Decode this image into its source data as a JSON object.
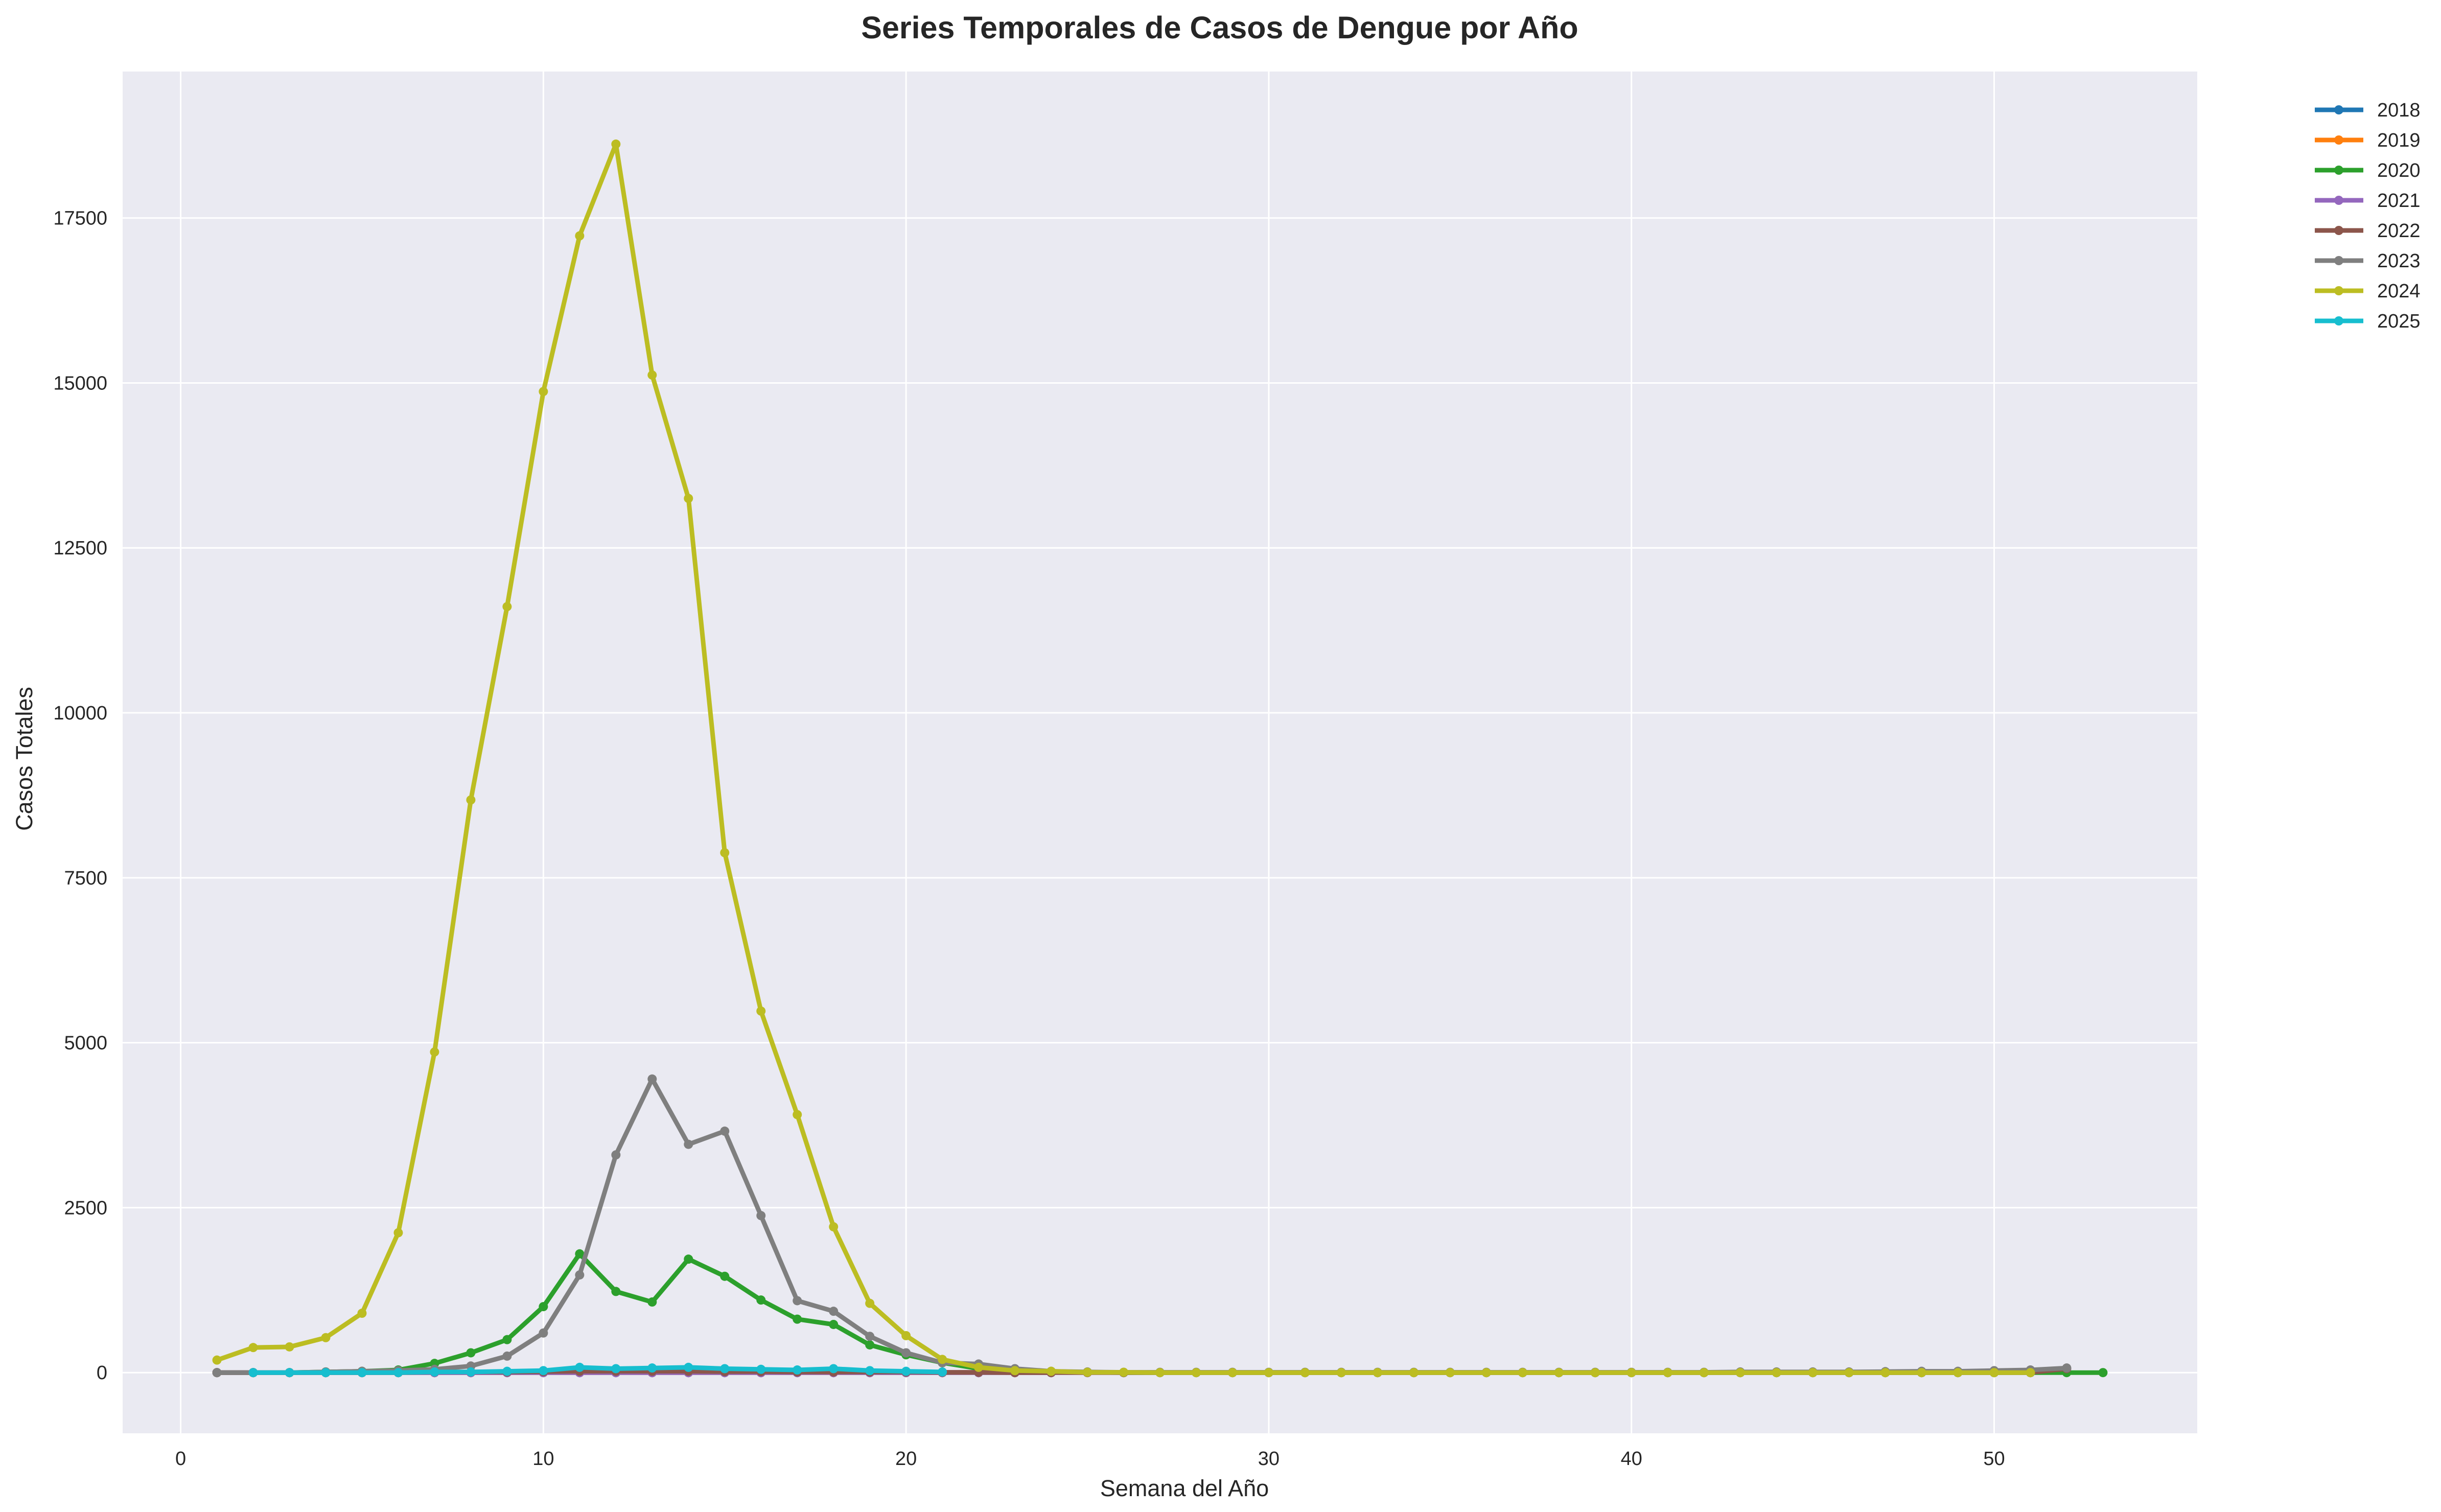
{
  "chart_data": {
    "type": "line",
    "title": "Series Temporales de Casos de Dengue por Año",
    "xlabel": "Semana del Año",
    "ylabel": "Casos Totales",
    "xlim": [
      -1.6,
      55.6
    ],
    "ylim": [
      -920,
      19720
    ],
    "xticks": [
      0,
      10,
      20,
      30,
      40,
      50
    ],
    "yticks": [
      0,
      2500,
      5000,
      7500,
      10000,
      12500,
      15000,
      17500
    ],
    "grid": true,
    "legend_position": "outside-top-right",
    "series": [
      {
        "name": "2018",
        "color": "#1f77b4",
        "x": [
          1,
          2,
          3,
          4,
          5,
          6,
          7,
          8,
          9,
          10,
          11,
          12,
          13,
          14,
          15,
          16,
          17,
          18,
          19,
          20,
          21,
          22,
          23,
          24
        ],
        "y": [
          0,
          0,
          0,
          0,
          0,
          0,
          0,
          0,
          0,
          0,
          0,
          0,
          0,
          0,
          0,
          0,
          0,
          0,
          0,
          0,
          0,
          0,
          0,
          0
        ]
      },
      {
        "name": "2019",
        "color": "#ff7f0e",
        "x": [
          1,
          2,
          3,
          4,
          5,
          6,
          7,
          8,
          9,
          10,
          11,
          12,
          13,
          14,
          15,
          16,
          17,
          18,
          19,
          20,
          21,
          22,
          23,
          24
        ],
        "y": [
          0,
          0,
          0,
          0,
          0,
          0,
          0,
          0,
          0,
          0,
          0,
          0,
          0,
          0,
          0,
          0,
          0,
          0,
          0,
          0,
          0,
          0,
          0,
          0
        ]
      },
      {
        "name": "2020",
        "color": "#2ca02c",
        "x": [
          1,
          2,
          3,
          4,
          5,
          6,
          7,
          8,
          9,
          10,
          11,
          12,
          13,
          14,
          15,
          16,
          17,
          18,
          19,
          20,
          21,
          22,
          23,
          24,
          25,
          26,
          27,
          28,
          29,
          30,
          31,
          32,
          33,
          34,
          35,
          36,
          37,
          38,
          39,
          40,
          41,
          42,
          43,
          44,
          45,
          46,
          47,
          48,
          49,
          50,
          51,
          52,
          53
        ],
        "y": [
          0,
          0,
          0,
          10,
          20,
          40,
          140,
          300,
          500,
          1000,
          1800,
          1230,
          1070,
          1720,
          1460,
          1100,
          810,
          730,
          420,
          270,
          150,
          60,
          20,
          10,
          5,
          0,
          0,
          0,
          0,
          0,
          0,
          0,
          0,
          0,
          0,
          0,
          0,
          0,
          0,
          0,
          0,
          0,
          0,
          0,
          0,
          0,
          0,
          0,
          0,
          0,
          0,
          0,
          0
        ]
      },
      {
        "name": "2021",
        "color": "#9467bd",
        "x": [
          1,
          2,
          3,
          4,
          5,
          6,
          7,
          8,
          9,
          10,
          11,
          12,
          13,
          14,
          15,
          16,
          17,
          18,
          19,
          20,
          21,
          22,
          23,
          24
        ],
        "y": [
          0,
          0,
          0,
          0,
          0,
          0,
          0,
          0,
          0,
          0,
          0,
          0,
          0,
          0,
          0,
          0,
          0,
          0,
          0,
          0,
          0,
          0,
          0,
          0
        ]
      },
      {
        "name": "2022",
        "color": "#8c564b",
        "x": [
          1,
          2,
          3,
          4,
          5,
          6,
          7,
          8,
          9,
          10,
          11,
          12,
          13,
          14,
          15,
          16,
          17,
          18,
          19,
          20,
          21,
          22,
          23,
          24,
          25,
          26,
          27,
          28,
          29,
          30,
          31,
          32,
          33,
          34,
          35,
          36,
          37,
          38,
          39,
          40,
          41,
          42,
          43,
          44,
          45,
          46,
          47,
          48,
          49,
          50,
          51,
          52
        ],
        "y": [
          0,
          0,
          0,
          0,
          0,
          0,
          10,
          10,
          10,
          15,
          20,
          20,
          20,
          20,
          15,
          15,
          10,
          10,
          10,
          10,
          5,
          5,
          0,
          0,
          0,
          0,
          0,
          0,
          0,
          0,
          0,
          0,
          0,
          0,
          0,
          0,
          0,
          0,
          0,
          0,
          0,
          0,
          0,
          0,
          0,
          0,
          0,
          0,
          0,
          0,
          0,
          60
        ]
      },
      {
        "name": "2023",
        "color": "#7f7f7f",
        "x": [
          1,
          2,
          3,
          4,
          5,
          6,
          7,
          8,
          9,
          10,
          11,
          12,
          13,
          14,
          15,
          16,
          17,
          18,
          19,
          20,
          21,
          22,
          23,
          24,
          25,
          26,
          27,
          28,
          29,
          30,
          31,
          32,
          33,
          34,
          35,
          36,
          37,
          38,
          39,
          40,
          41,
          42,
          43,
          44,
          45,
          46,
          47,
          48,
          49,
          50,
          51,
          52
        ],
        "y": [
          0,
          0,
          0,
          10,
          20,
          30,
          50,
          100,
          250,
          600,
          1480,
          3300,
          4450,
          3460,
          3660,
          2380,
          1090,
          930,
          550,
          300,
          150,
          130,
          60,
          20,
          10,
          5,
          5,
          5,
          5,
          5,
          5,
          5,
          5,
          5,
          5,
          5,
          5,
          5,
          5,
          5,
          5,
          5,
          10,
          10,
          10,
          10,
          15,
          20,
          20,
          30,
          40,
          70
        ]
      },
      {
        "name": "2024",
        "color": "#bcbd22",
        "x": [
          1,
          2,
          3,
          4,
          5,
          6,
          7,
          8,
          9,
          10,
          11,
          12,
          13,
          14,
          15,
          16,
          17,
          18,
          19,
          20,
          21,
          22,
          23,
          24,
          25,
          26,
          27,
          28,
          29,
          30,
          31,
          32,
          33,
          34,
          35,
          36,
          37,
          38,
          39,
          40,
          41,
          42,
          43,
          44,
          45,
          46,
          47,
          48,
          49,
          50,
          51
        ],
        "y": [
          190,
          380,
          390,
          530,
          900,
          2120,
          4860,
          8680,
          11610,
          14870,
          17230,
          18620,
          15120,
          13250,
          7880,
          5480,
          3910,
          2210,
          1050,
          560,
          200,
          80,
          30,
          20,
          5,
          5,
          0,
          0,
          0,
          0,
          0,
          0,
          0,
          0,
          0,
          0,
          0,
          0,
          0,
          0,
          0,
          0,
          0,
          0,
          0,
          0,
          0,
          0,
          0,
          0,
          0
        ]
      },
      {
        "name": "2025",
        "color": "#17becf",
        "x": [
          2,
          3,
          4,
          5,
          6,
          7,
          8,
          9,
          10,
          11,
          12,
          13,
          14,
          15,
          16,
          17,
          18,
          19,
          20,
          21
        ],
        "y": [
          0,
          0,
          0,
          0,
          0,
          10,
          10,
          20,
          30,
          80,
          60,
          70,
          80,
          60,
          50,
          40,
          60,
          30,
          20,
          10
        ]
      }
    ]
  }
}
